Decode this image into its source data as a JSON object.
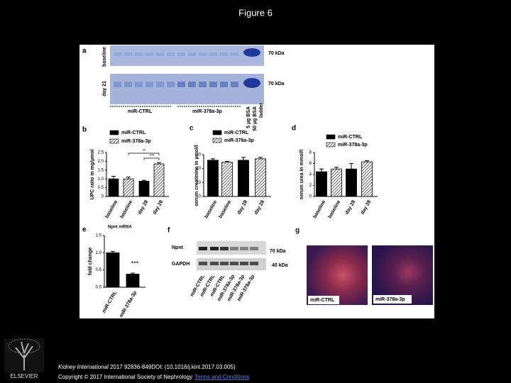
{
  "header": {
    "title": "Figure 6"
  },
  "figure": {
    "panel_a": {
      "label": "a",
      "rows": [
        "baseline",
        "day 21"
      ],
      "marker": [
        "70 kDa",
        "70 kDa"
      ],
      "groups": [
        "miR-CTRL",
        "miR-378a-3p"
      ],
      "lanes": [
        "5 µg BSA",
        "50 µg BSA",
        "ladder"
      ]
    },
    "panel_f": {
      "label": "f",
      "rows": [
        "Npnt",
        "GAPDH"
      ],
      "marker": [
        "70 kDa",
        "40 kDa"
      ],
      "lanes": [
        "miR-CTRL",
        "miR-CTRL",
        "miR-CTRL",
        "miR-378a-3p",
        "miR-378a-3p",
        "miR-378a-3p"
      ]
    },
    "panel_g": {
      "label": "g",
      "images": [
        "miR-CTRL",
        "miR-378a-3p"
      ]
    }
  },
  "chart_data": [
    {
      "type": "bar",
      "label": "b",
      "y_label": "UPC ratio in mg/µmol",
      "categories": [
        "baseline",
        "baseline",
        "day 28",
        "day 28"
      ],
      "series": [
        {
          "name": "miR-CTRL",
          "color": "#000000",
          "hatch": false,
          "values": [
            1.0,
            null,
            0.87,
            null
          ],
          "errors": [
            0.15,
            null,
            0.05,
            null
          ]
        },
        {
          "name": "miR-378a-3p",
          "color": "#ffffff",
          "hatch": true,
          "values": [
            null,
            1.0,
            null,
            1.85
          ],
          "errors": [
            null,
            0.1,
            null,
            0.07
          ]
        }
      ],
      "ylim": [
        0,
        2.5
      ],
      "yticks": [
        0,
        0.5,
        {
          "value": 1,
          "label": "1.0"
        },
        1.5,
        {
          "value": 2,
          "label": "2.0"
        },
        2.5
      ],
      "annotations": [
        "**",
        "***"
      ]
    },
    {
      "type": "bar",
      "label": "c",
      "y_label": "serum creatinine in µmol/l",
      "categories": [
        "baseline",
        "baseline",
        "day 28",
        "day 28"
      ],
      "series": [
        {
          "name": "miR-CTRL",
          "color": "#000000",
          "hatch": false,
          "values": [
            26,
            null,
            26,
            null
          ],
          "errors": [
            1,
            null,
            2,
            null
          ]
        },
        {
          "name": "miR-378a-3p",
          "color": "#ffffff",
          "hatch": true,
          "values": [
            null,
            24.5,
            null,
            27
          ],
          "errors": [
            null,
            0.7,
            null,
            1
          ]
        }
      ],
      "ylim": [
        0,
        30
      ],
      "yticks": [
        0,
        10,
        20,
        30
      ]
    },
    {
      "type": "bar",
      "label": "d",
      "y_label": "serum urea in mmol/l",
      "categories": [
        "baseline",
        "baseline",
        "day 28",
        "day 28"
      ],
      "series": [
        {
          "name": "miR-CTRL",
          "color": "#000000",
          "hatch": false,
          "values": [
            4.5,
            null,
            5,
            null
          ],
          "errors": [
            0.5,
            null,
            1,
            null
          ]
        },
        {
          "name": "miR-378a-3p",
          "color": "#ffffff",
          "hatch": true,
          "values": [
            null,
            5,
            null,
            6.3
          ],
          "errors": [
            null,
            0.3,
            null,
            0.2
          ]
        }
      ],
      "ylim": [
        0,
        8
      ],
      "yticks": [
        0,
        2,
        4,
        6,
        8
      ]
    },
    {
      "type": "bar",
      "label": "e",
      "title": "Npnt mRNA",
      "y_label": "fold change",
      "categories": [
        "miR-CTRL",
        "miR-378a-3p"
      ],
      "values": [
        1.0,
        0.38
      ],
      "errors": [
        0.04,
        0.03
      ],
      "color": "#000000",
      "ylim": [
        0,
        1.5
      ],
      "yticks": [
        {
          "value": 0,
          "label": "0.0"
        },
        0.5,
        {
          "value": 1,
          "label": "1.0"
        },
        1.5
      ],
      "annotations": [
        "***"
      ]
    }
  ],
  "footer": {
    "publisher": "ELSEVIER",
    "journal": "Kidney International",
    "citation": " 2017 92836-849DOI: (10.1016/j.kint.2017.03.005)",
    "copyright": "Copyright © 2017 International Society of Nephrology",
    "link": "Terms and Conditions"
  }
}
